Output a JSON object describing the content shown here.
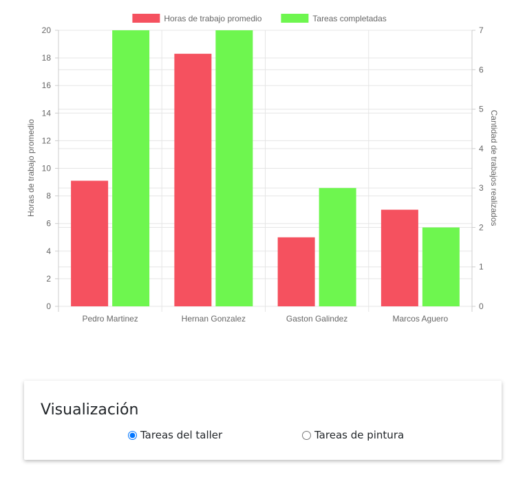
{
  "chart_data": {
    "type": "bar",
    "categories": [
      "Pedro Martinez",
      "Hernan Gonzalez",
      "Gaston Galindez",
      "Marcos Aguero"
    ],
    "series": [
      {
        "name": "Horas de trabajo promedio",
        "values": [
          9.1,
          18.3,
          5.0,
          7.0
        ],
        "axis": "left",
        "color": "#f5515f"
      },
      {
        "name": "Tareas completadas",
        "values": [
          7,
          7,
          3,
          2
        ],
        "axis": "right",
        "color": "#6ef64f"
      }
    ],
    "ylabel": "Horas de trabajo promedio",
    "ylabel_right": "Cantidad de trabajos realizados",
    "ylim": [
      0,
      20
    ],
    "ylim_right": [
      0,
      7
    ],
    "yticks": [
      "0",
      "2",
      "4",
      "6",
      "8",
      "10",
      "12",
      "14",
      "16",
      "18",
      "20"
    ],
    "yticks_right": [
      "0",
      "1",
      "2",
      "3",
      "4",
      "5",
      "6",
      "7"
    ],
    "grid": true,
    "legend_position": "top-center"
  },
  "controls": {
    "title": "Visualización",
    "options": [
      {
        "label": "Tareas del taller",
        "checked": true
      },
      {
        "label": "Tareas de pintura",
        "checked": false
      }
    ]
  }
}
